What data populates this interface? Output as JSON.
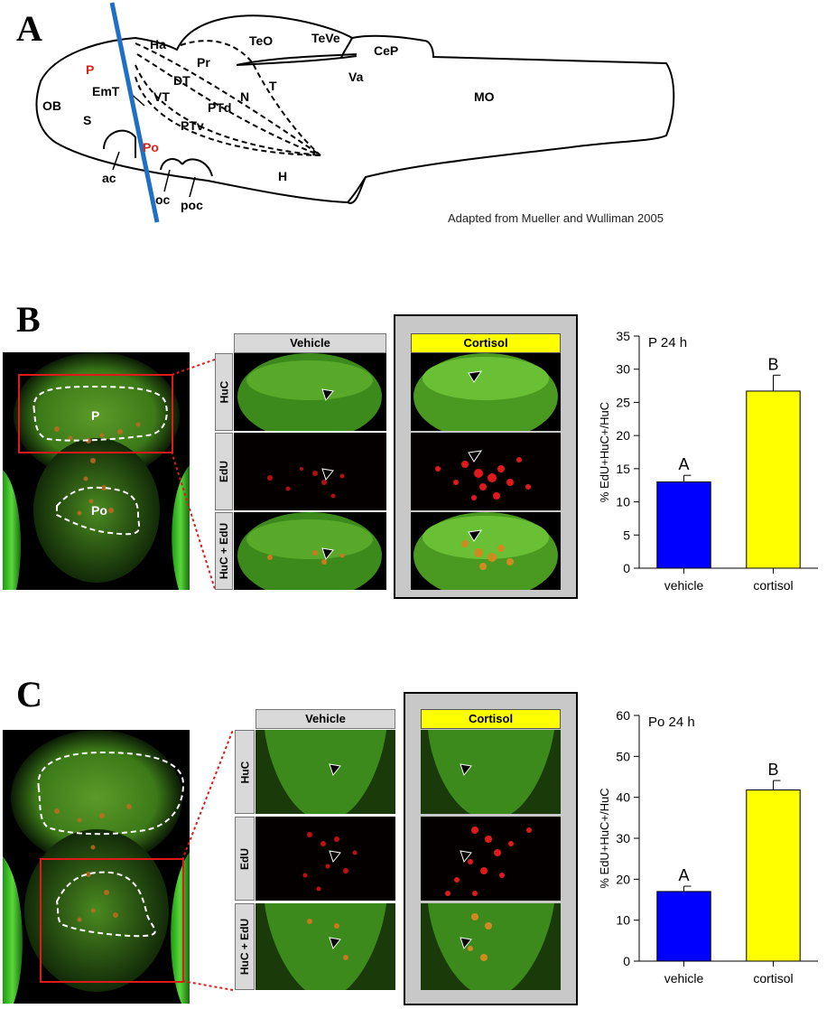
{
  "panels": {
    "a": {
      "letter": "A"
    },
    "b": {
      "letter": "B"
    },
    "c": {
      "letter": "C"
    }
  },
  "brain_schematic": {
    "regions": {
      "OB": "OB",
      "P": "P",
      "S": "S",
      "EmT": "EmT",
      "Po": "Po",
      "ac": "ac",
      "Ha": "Ha",
      "DT": "DT",
      "VT": "VT",
      "PTd": "PTd",
      "PTv": "PTv",
      "Pr": "Pr",
      "N": "N",
      "T": "T",
      "TeO": "TeO",
      "TeVe": "TeVe",
      "CeP": "CeP",
      "Va": "Va",
      "MO": "MO",
      "H": "H",
      "oc": "oc",
      "poc": "poc"
    },
    "highlight_color": "#e0201a",
    "section_line_color": "#1f6fc4",
    "credit": "Adapted from Mueller and Wulliman 2005"
  },
  "panel_b": {
    "overview_labels": {
      "top": "P",
      "bottom": "Po"
    },
    "columns": [
      "Vehicle",
      "Cortisol"
    ],
    "rows": [
      "HuC",
      "EdU",
      "HuC + EdU"
    ]
  },
  "panel_c": {
    "columns": [
      "Vehicle",
      "Cortisol"
    ],
    "rows": [
      "HuC",
      "EdU",
      "HuC + EdU"
    ]
  },
  "chart_data": [
    {
      "type": "bar",
      "title": "P 24 h",
      "categories": [
        "vehicle",
        "cortisol"
      ],
      "values": [
        13.0,
        26.7
      ],
      "errors": [
        1.0,
        2.4
      ],
      "significance_letters": [
        "A",
        "B"
      ],
      "colors": [
        "#0000ff",
        "#ffff00"
      ],
      "ylabel": "% EdU+HuC+/HuC",
      "ylim": [
        0,
        35
      ],
      "yticks": [
        0,
        5,
        10,
        15,
        20,
        25,
        30,
        35
      ]
    },
    {
      "type": "bar",
      "title": "Po 24 h",
      "categories": [
        "vehicle",
        "cortisol"
      ],
      "values": [
        17.0,
        41.8
      ],
      "errors": [
        1.3,
        2.3
      ],
      "significance_letters": [
        "A",
        "B"
      ],
      "colors": [
        "#0000ff",
        "#ffff00"
      ],
      "ylabel": "% EdU+HuC+/HuC",
      "ylim": [
        0,
        60
      ],
      "yticks": [
        0,
        10,
        20,
        30,
        40,
        50,
        60
      ]
    }
  ]
}
